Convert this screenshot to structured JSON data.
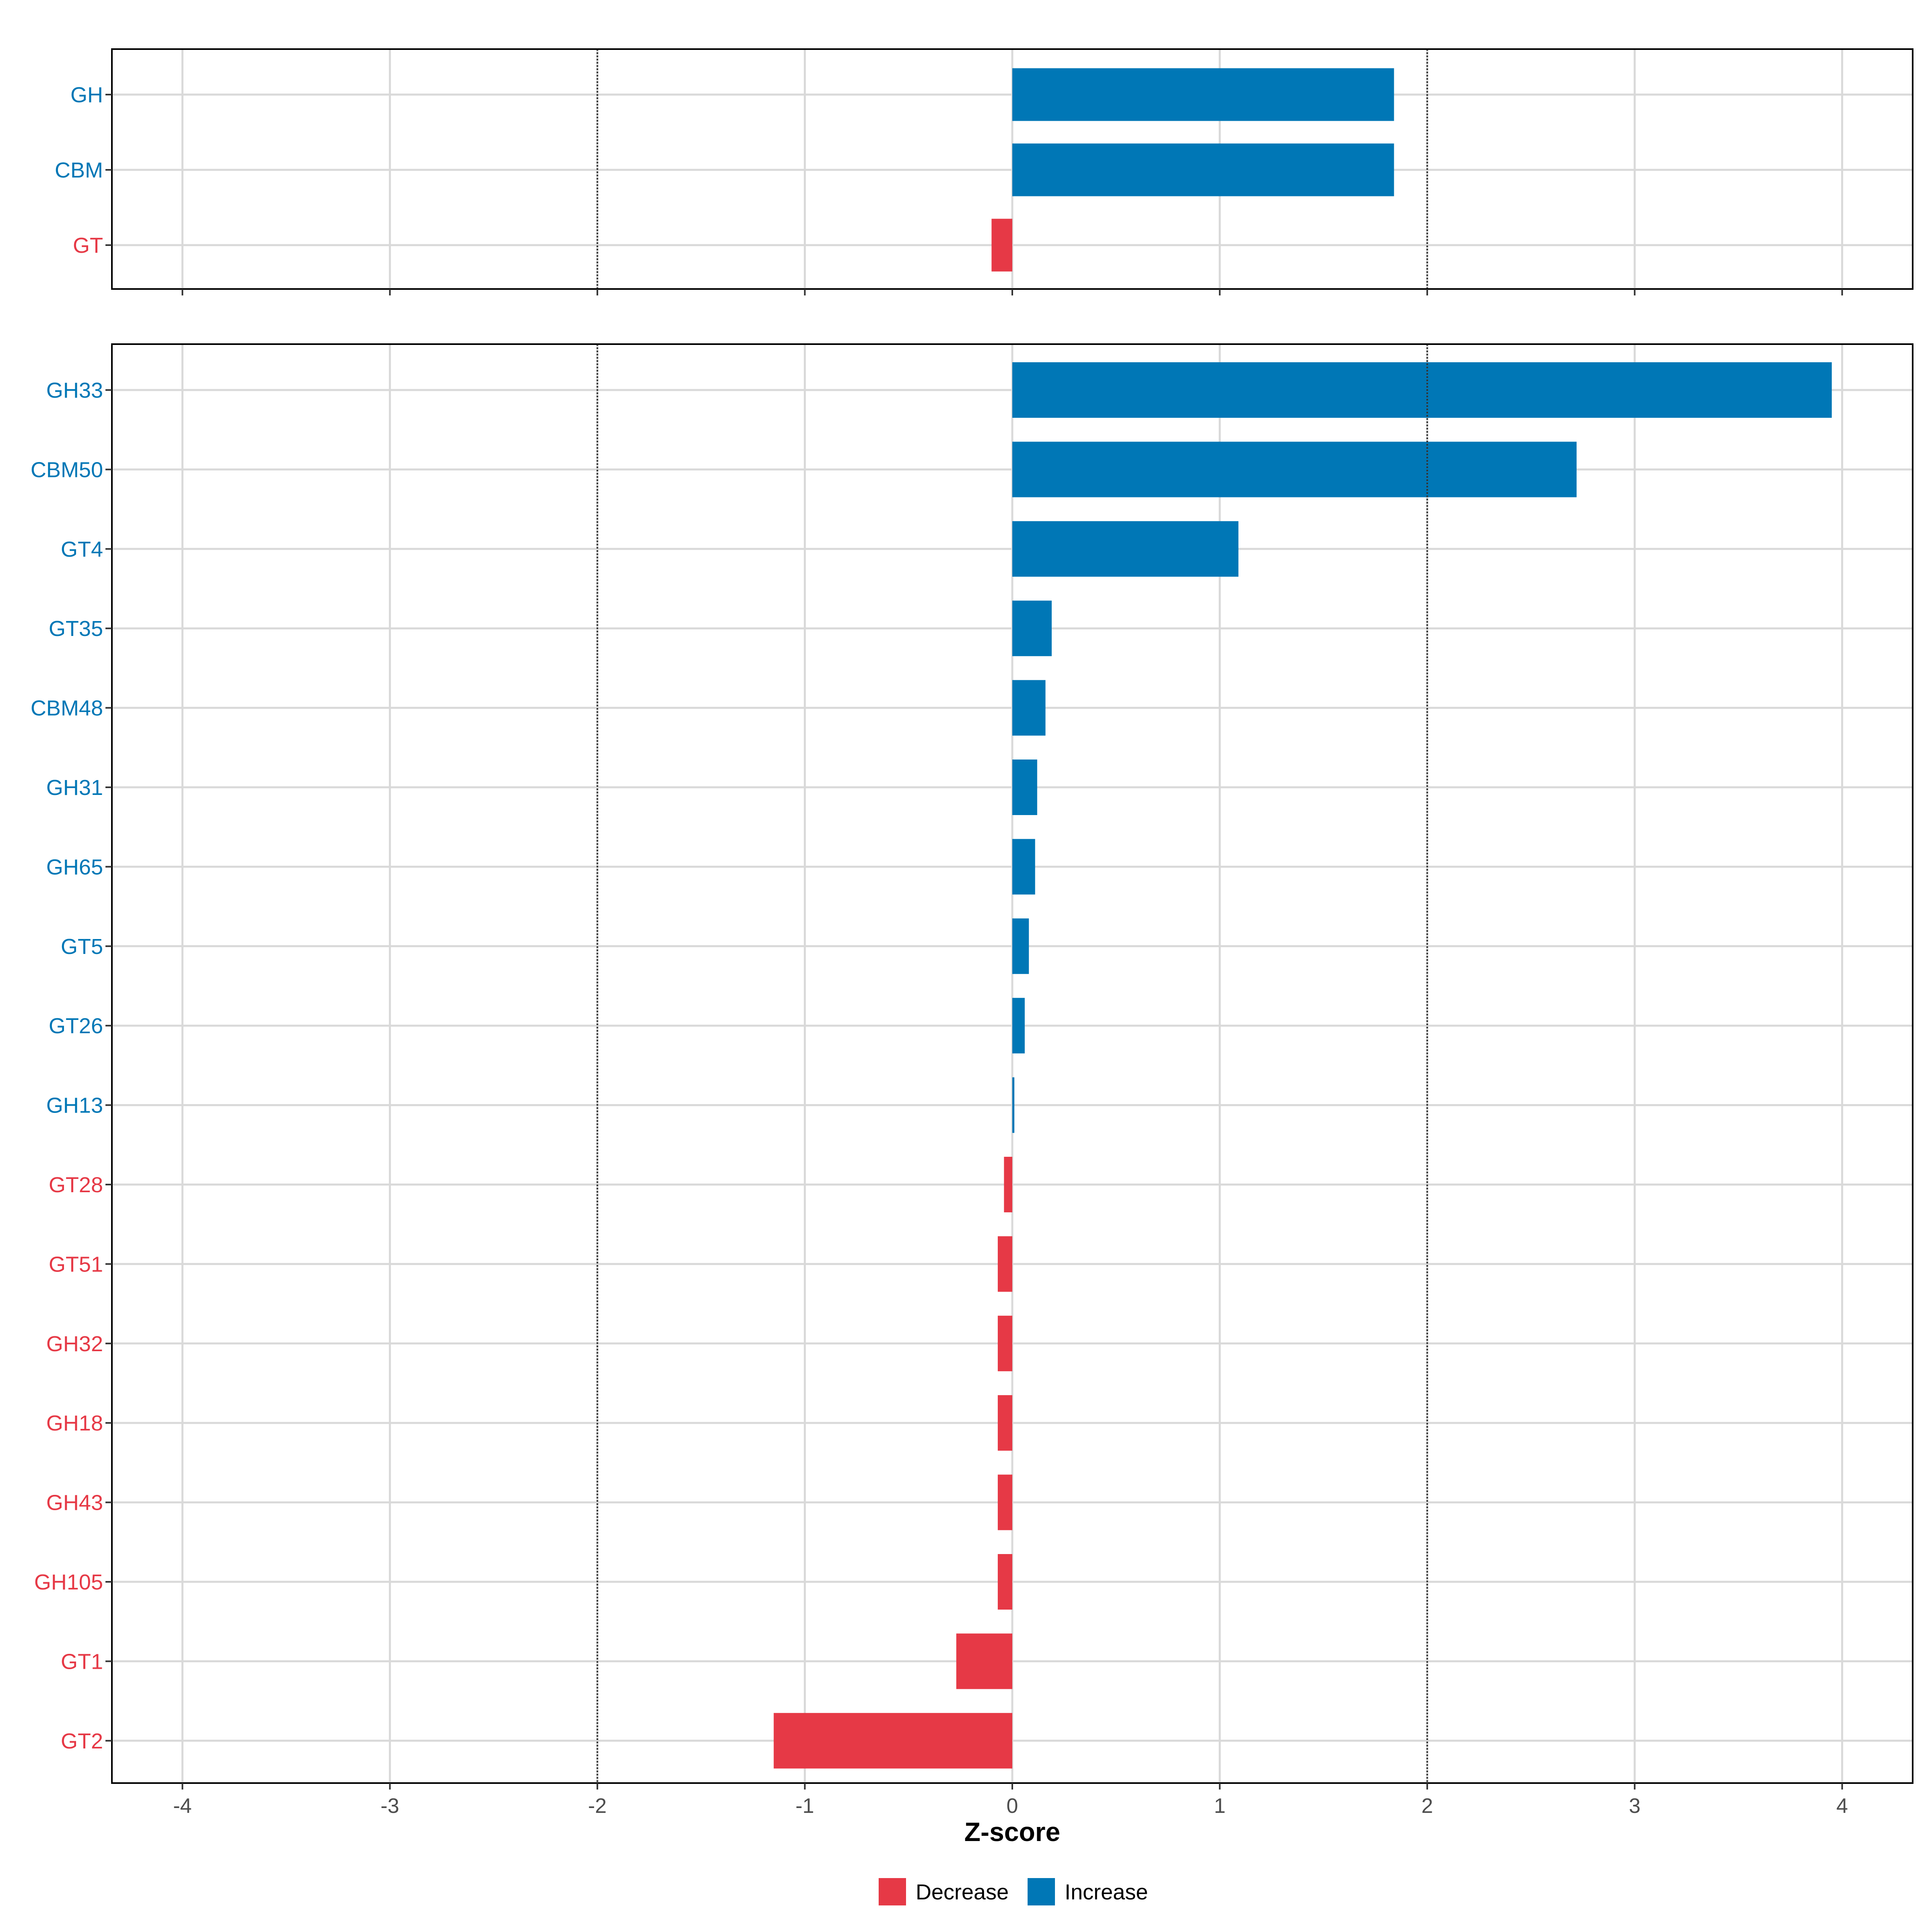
{
  "chart_data": {
    "type": "bar",
    "orientation": "horizontal",
    "xlabel": "Z-score",
    "xlim": [
      -4.34,
      4.34
    ],
    "x_ticks": [
      -4,
      -3,
      -2,
      -1,
      0,
      1,
      2,
      3,
      4
    ],
    "x_tick_labels": [
      "-4",
      "-3",
      "-2",
      "-1",
      "0",
      "1",
      "2",
      "3",
      "4"
    ],
    "threshold_lines": [
      -2,
      2
    ],
    "grid": true,
    "legend_position": "bottom",
    "legend": [
      {
        "key": "Decrease",
        "label": "Decrease"
      },
      {
        "key": "Increase",
        "label": "Increase"
      }
    ],
    "colors": {
      "Decrease": "#e63946",
      "Increase": "#0077b6"
    },
    "panels": [
      {
        "name": "class",
        "categories": [
          "GH",
          "CBM",
          "GT"
        ],
        "values": [
          1.84,
          1.84,
          -0.1
        ]
      },
      {
        "name": "family",
        "categories": [
          "GH33",
          "CBM50",
          "GT4",
          "GT35",
          "CBM48",
          "GH31",
          "GH65",
          "GT5",
          "GT26",
          "GH13",
          "GT28",
          "GT51",
          "GH32",
          "GH18",
          "GH43",
          "GH105",
          "GT1",
          "GT2"
        ],
        "values": [
          3.95,
          2.72,
          1.09,
          0.19,
          0.16,
          0.12,
          0.11,
          0.08,
          0.06,
          0.01,
          -0.04,
          -0.07,
          -0.07,
          -0.07,
          -0.07,
          -0.07,
          -0.27,
          -1.15
        ]
      }
    ]
  }
}
